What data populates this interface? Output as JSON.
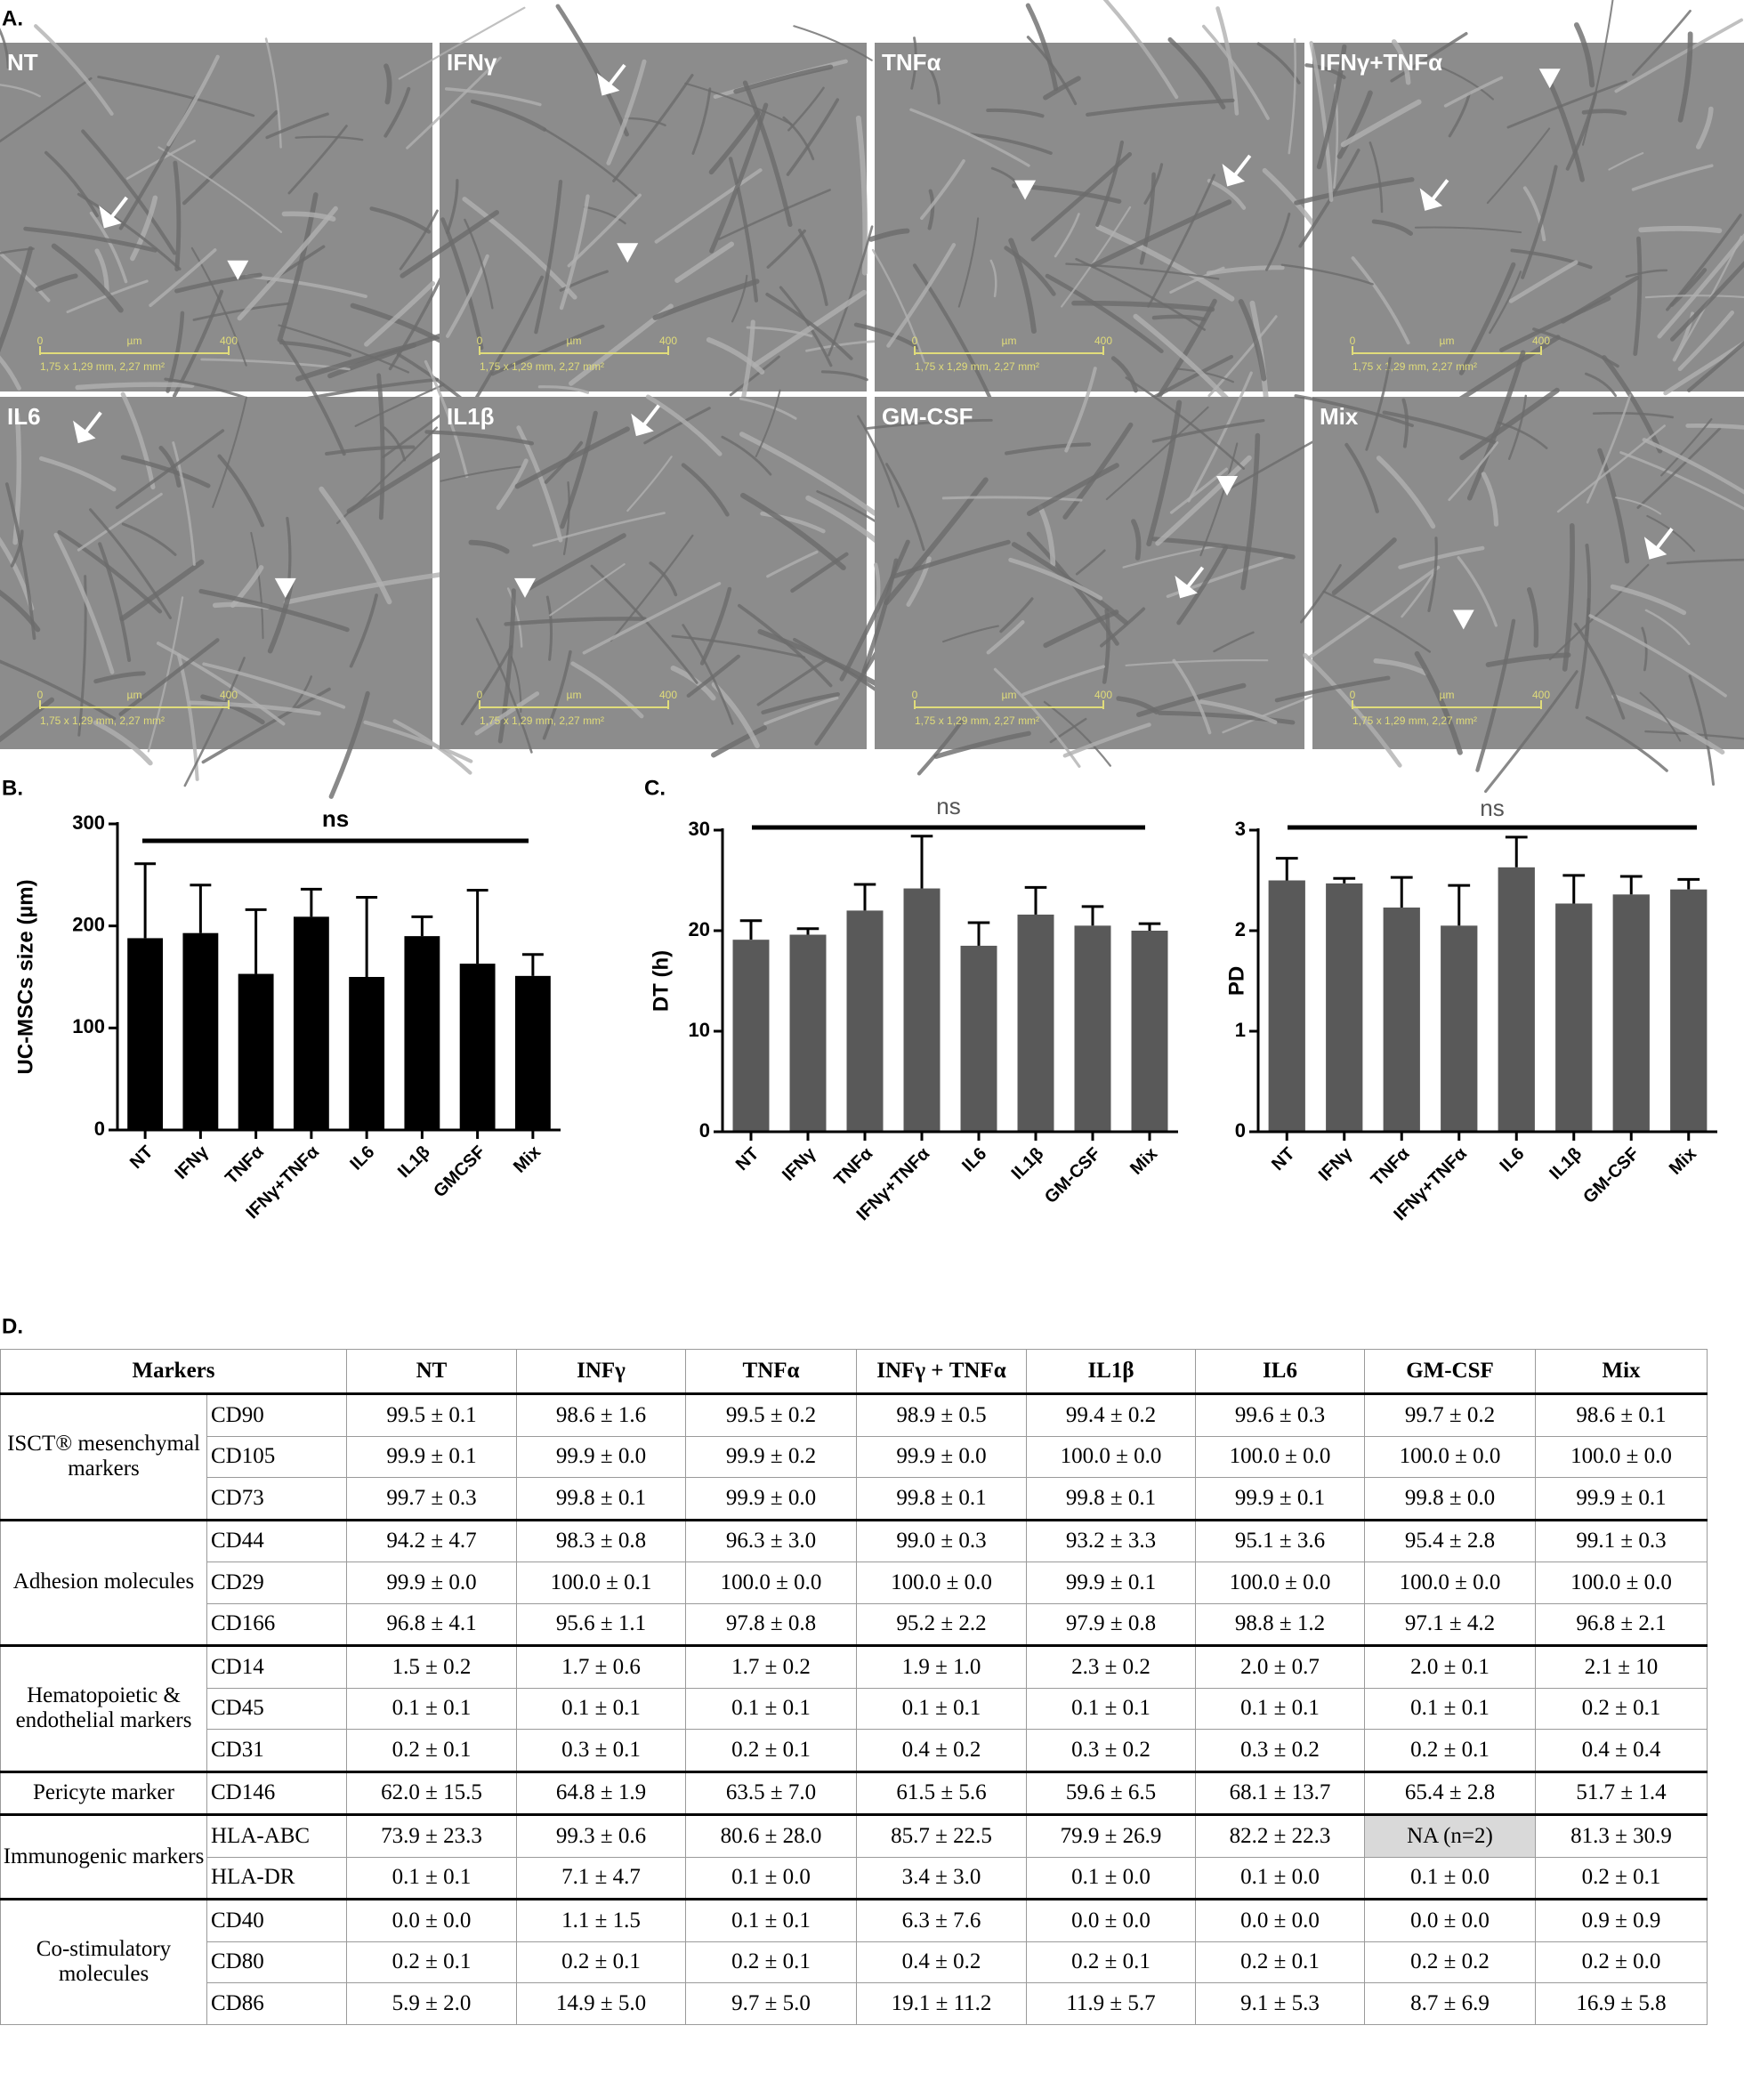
{
  "panel_labels": [
    "A.",
    "B.",
    "C.",
    "D."
  ],
  "micrographs": [
    {
      "label": "NT",
      "scale_start": "0",
      "scale_unit": "µm",
      "scale_end": "400",
      "dimensions": "1,75 x 1,29 mm, 2,27 mm²"
    },
    {
      "label": "IFNγ",
      "scale_start": "0",
      "scale_unit": "µm",
      "scale_end": "400",
      "dimensions": "1,75 x 1,29 mm, 2,27 mm²"
    },
    {
      "label": "TNFα",
      "scale_start": "0",
      "scale_unit": "µm",
      "scale_end": "400",
      "dimensions": "1,75 x 1,29 mm, 2,27 mm²"
    },
    {
      "label": "IFNγ+TNFα",
      "scale_start": "0",
      "scale_unit": "µm",
      "scale_end": "400",
      "dimensions": "1,75 x 1,29 mm, 2,27 mm²"
    },
    {
      "label": "IL6",
      "scale_start": "0",
      "scale_unit": "µm",
      "scale_end": "400",
      "dimensions": "1,75 x 1,29 mm, 2,27 mm²"
    },
    {
      "label": "IL1β",
      "scale_start": "0",
      "scale_unit": "µm",
      "scale_end": "400",
      "dimensions": "1,75 x 1,29 mm, 2,27 mm²"
    },
    {
      "label": "GM-CSF",
      "scale_start": "0",
      "scale_unit": "µm",
      "scale_end": "400",
      "dimensions": "1,75 x 1,29 mm, 2,27 mm²"
    },
    {
      "label": "Mix",
      "scale_start": "0",
      "scale_unit": "µm",
      "scale_end": "400",
      "dimensions": "1,75 x 1,29 mm, 2,27 mm²"
    }
  ],
  "chart_data": [
    {
      "type": "bar",
      "y_label": "UC-MSCs size (µm)",
      "annotation": "ns",
      "color": "#000000",
      "categories": [
        "NT",
        "IFNγ",
        "TNFα",
        "IFNγ+TNFα",
        "IL6",
        "IL1β",
        "GMCSF",
        "Mix"
      ],
      "values": [
        188,
        193,
        153,
        209,
        150,
        190,
        163,
        151
      ],
      "errors": [
        73,
        47,
        63,
        27,
        78,
        19,
        72,
        21
      ],
      "ylim": [
        0,
        300
      ],
      "yticks": [
        0,
        100,
        200,
        300
      ]
    },
    {
      "type": "bar",
      "y_label": "DT (h)",
      "annotation": "ns",
      "color": "#595959",
      "categories": [
        "NT",
        "IFNγ",
        "TNFα",
        "IFNγ+TNFα",
        "IL6",
        "IL1β",
        "GM-CSF",
        "Mix"
      ],
      "values": [
        19.1,
        19.6,
        22.0,
        24.2,
        18.5,
        21.6,
        20.5,
        20.0
      ],
      "errors": [
        1.9,
        0.6,
        2.6,
        5.2,
        2.3,
        2.7,
        1.9,
        0.7
      ],
      "ylim": [
        0,
        30
      ],
      "yticks": [
        0,
        10,
        20,
        30
      ]
    },
    {
      "type": "bar",
      "y_label": "PD",
      "annotation": "ns",
      "color": "#595959",
      "categories": [
        "NT",
        "IFNγ",
        "TNFα",
        "IFNγ+TNFα",
        "IL6",
        "IL1β",
        "GM-CSF",
        "Mix"
      ],
      "values": [
        2.5,
        2.47,
        2.23,
        2.05,
        2.63,
        2.27,
        2.36,
        2.41
      ],
      "errors": [
        0.22,
        0.05,
        0.3,
        0.4,
        0.3,
        0.28,
        0.18,
        0.1
      ],
      "ylim": [
        0,
        3
      ],
      "yticks": [
        0,
        1,
        2,
        3
      ]
    }
  ],
  "table": {
    "header": [
      "Markers",
      "NT",
      "INFγ",
      "TNFα",
      "INFγ + TNFα",
      "IL1β",
      "IL6",
      "GM-CSF",
      "Mix"
    ],
    "groups": [
      {
        "name": "ISCT® mesenchymal markers",
        "rows": [
          {
            "marker": "CD90",
            "values": [
              "99.5 ±  0.1",
              "98.6 ± 1.6",
              "99.5 ± 0.2",
              "98.9 ± 0.5",
              "99.4 ± 0.2",
              "99.6 ± 0.3",
              "99.7 ± 0.2",
              "98.6 ± 0.1"
            ]
          },
          {
            "marker": "CD105",
            "values": [
              "99.9 ± 0.1",
              "99.9 ± 0.0",
              "99.9 ± 0.2",
              "99.9 ± 0.0",
              "100.0 ± 0.0",
              "100.0 ± 0.0",
              "100.0 ± 0.0",
              "100.0 ± 0.0"
            ]
          },
          {
            "marker": "CD73",
            "values": [
              "99.7 ± 0.3",
              "99.8 ± 0.1",
              "99.9 ± 0.0",
              "99.8 ± 0.1",
              "99.8 ± 0.1",
              "99.9 ± 0.1",
              "99.8 ± 0.0",
              "99.9 ± 0.1"
            ]
          }
        ]
      },
      {
        "name": "Adhesion molecules",
        "rows": [
          {
            "marker": "CD44",
            "values": [
              "94.2 ± 4.7",
              "98.3 ± 0.8",
              "96.3 ± 3.0",
              "99.0 ± 0.3",
              "93.2 ± 3.3",
              "95.1 ± 3.6",
              "95.4 ± 2.8",
              "99.1 ± 0.3"
            ]
          },
          {
            "marker": "CD29",
            "values": [
              "99.9 ± 0.0",
              "100.0 ± 0.1",
              "100.0 ± 0.0",
              "100.0 ± 0.0",
              "99.9 ± 0.1",
              "100.0 ± 0.0",
              "100.0 ± 0.0",
              "100.0 ± 0.0"
            ]
          },
          {
            "marker": "CD166",
            "values": [
              "96.8 ± 4.1",
              "95.6 ± 1.1",
              "97.8 ± 0.8",
              "95.2 ± 2.2",
              "97.9 ± 0.8",
              "98.8 ± 1.2",
              "97.1 ± 4.2",
              "96.8 ± 2.1"
            ]
          }
        ]
      },
      {
        "name": "Hematopoietic & endothelial markers",
        "rows": [
          {
            "marker": "CD14",
            "values": [
              "1.5 ± 0.2",
              "1.7 ± 0.6",
              "1.7 ± 0.2",
              "1.9 ± 1.0",
              "2.3 ± 0.2",
              "2.0 ± 0.7",
              "2.0 ± 0.1",
              "2.1 ± 10"
            ]
          },
          {
            "marker": "CD45",
            "values": [
              "0.1 ± 0.1",
              "0.1 ± 0.1",
              "0.1 ± 0.1",
              "0.1 ± 0.1",
              "0.1 ± 0.1",
              "0.1 ± 0.1",
              "0.1 ± 0.1",
              "0.2 ± 0.1"
            ]
          },
          {
            "marker": "CD31",
            "values": [
              "0.2 ± 0.1",
              "0.3 ± 0.1",
              "0.2 ± 0.1",
              "0.4 ± 0.2",
              "0.3 ± 0.2",
              "0.3 ± 0.2",
              "0.2 ± 0.1",
              "0.4 ± 0.4"
            ]
          }
        ]
      },
      {
        "name": "Pericyte marker",
        "rows": [
          {
            "marker": "CD146",
            "values": [
              "62.0 ± 15.5",
              "64.8 ± 1.9",
              "63.5 ± 7.0",
              "61.5 ± 5.6",
              "59.6 ± 6.5",
              "68.1 ± 13.7",
              "65.4 ± 2.8",
              "51.7 ± 1.4"
            ]
          }
        ]
      },
      {
        "name": "Immunogenic markers",
        "rows": [
          {
            "marker": "HLA-ABC",
            "values": [
              "73.9 ± 23.3",
              "99.3 ± 0.6",
              "80.6 ± 28.0",
              "85.7 ± 22.5",
              "79.9 ± 26.9",
              "82.2 ± 22.3",
              "NA (n=2)",
              "81.3 ± 30.9"
            ]
          },
          {
            "marker": "HLA-DR",
            "values": [
              "0.1 ± 0.1",
              "7.1 ± 4.7",
              "0.1 ± 0.0",
              "3.4 ± 3.0",
              "0.1 ± 0.0",
              "0.1 ± 0.0",
              "0.1 ± 0.0",
              "0.2 ± 0.1"
            ]
          }
        ]
      },
      {
        "name": "Co-stimulatory molecules",
        "rows": [
          {
            "marker": "CD40",
            "values": [
              "0.0 ± 0.0",
              "1.1 ± 1.5",
              "0.1 ± 0.1",
              "6.3 ± 7.6",
              "0.0 ± 0.0",
              "0.0 ± 0.0",
              "0.0 ± 0.0",
              "0.9 ± 0.9"
            ]
          },
          {
            "marker": "CD80",
            "values": [
              "0.2 ± 0.1",
              "0.2 ± 0.1",
              "0.2 ± 0.1",
              "0.4 ± 0.2",
              "0.2 ± 0.1",
              "0.2 ± 0.1",
              "0.2 ± 0.2",
              "0.2 ± 0.0"
            ]
          },
          {
            "marker": "CD86",
            "values": [
              "5.9 ± 2.0",
              "14.9 ± 5.0",
              "9.7 ± 5.0",
              "19.1 ± 11.2",
              "11.9 ± 5.7",
              "9.1 ± 5.3",
              "8.7 ± 6.9",
              "16.9 ± 5.8"
            ]
          }
        ]
      }
    ]
  }
}
